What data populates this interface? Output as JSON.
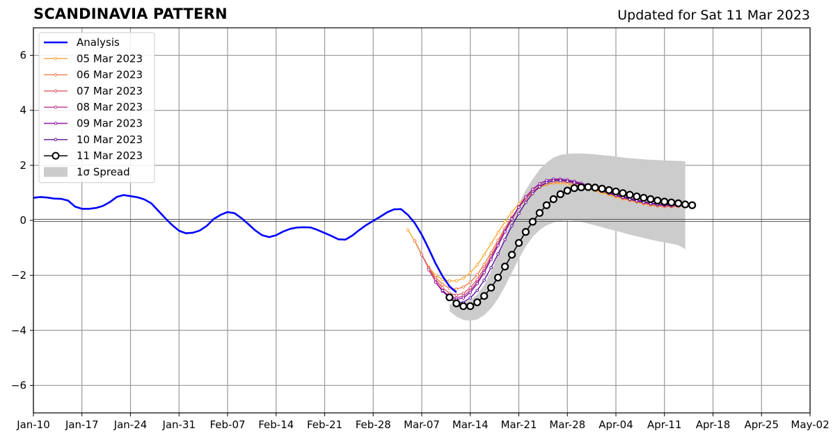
{
  "chart_data": {
    "type": "line",
    "title": "SCANDINAVIA PATTERN",
    "subtitle": "Updated for Sat 11 Mar 2023",
    "xlabel": "",
    "ylabel": "",
    "ylim": [
      -7,
      7
    ],
    "xlim": [
      "2023-01-10",
      "2023-05-02"
    ],
    "yticks": [
      -6,
      -4,
      -2,
      0,
      2,
      4,
      6
    ],
    "xticks": [
      "Jan-10",
      "Jan-17",
      "Jan-24",
      "Jan-31",
      "Feb-07",
      "Feb-14",
      "Feb-21",
      "Feb-28",
      "Mar-07",
      "Mar-14",
      "Mar-21",
      "Mar-28",
      "Apr-04",
      "Apr-11",
      "Apr-18",
      "Apr-25",
      "May-02"
    ],
    "grid": true,
    "legend_position": "upper left",
    "spread_label": "1σ Spread",
    "analysis": {
      "name": "Analysis",
      "color": "#0000ff",
      "start": "2023-01-10",
      "values": [
        0.82,
        0.85,
        0.83,
        0.79,
        0.78,
        0.72,
        0.5,
        0.42,
        0.42,
        0.45,
        0.52,
        0.66,
        0.85,
        0.92,
        0.88,
        0.84,
        0.76,
        0.62,
        0.35,
        0.08,
        -0.17,
        -0.38,
        -0.47,
        -0.45,
        -0.37,
        -0.2,
        0.05,
        0.2,
        0.3,
        0.26,
        0.08,
        -0.14,
        -0.37,
        -0.54,
        -0.61,
        -0.54,
        -0.41,
        -0.31,
        -0.26,
        -0.25,
        -0.26,
        -0.35,
        -0.46,
        -0.57,
        -0.69,
        -0.7,
        -0.55,
        -0.35,
        -0.17,
        -0.02,
        0.13,
        0.29,
        0.4,
        0.41,
        0.2,
        -0.1,
        -0.52,
        -1.03,
        -1.57,
        -2.03,
        -2.4,
        -2.62
      ]
    },
    "spread": {
      "start": "2023-03-11",
      "upper": [
        -3.05,
        -3.05,
        -3.0,
        -2.9,
        -2.7,
        -2.35,
        -1.85,
        -1.25,
        -0.6,
        0.05,
        0.6,
        1.1,
        1.5,
        1.85,
        2.1,
        2.28,
        2.38,
        2.42,
        2.43,
        2.43,
        2.42,
        2.4,
        2.37,
        2.35,
        2.32,
        2.28,
        2.26,
        2.24,
        2.22,
        2.2,
        2.19,
        2.18,
        2.17,
        2.16,
        2.15
      ],
      "lower": [
        -3.3,
        -3.5,
        -3.62,
        -3.65,
        -3.6,
        -3.45,
        -3.2,
        -2.85,
        -2.4,
        -1.9,
        -1.4,
        -0.95,
        -0.6,
        -0.35,
        -0.18,
        -0.08,
        -0.03,
        0.0,
        -0.02,
        -0.06,
        -0.12,
        -0.18,
        -0.25,
        -0.32,
        -0.38,
        -0.45,
        -0.52,
        -0.58,
        -0.64,
        -0.7,
        -0.75,
        -0.8,
        -0.85,
        -0.9,
        -1.05
      ]
    },
    "series": [
      {
        "name": "05 Mar 2023",
        "color": "#f7a833",
        "start": "2023-03-05",
        "values": [
          -0.35,
          -0.75,
          -1.25,
          -1.7,
          -2.0,
          -2.15,
          -2.2,
          -2.2,
          -2.1,
          -1.9,
          -1.62,
          -1.25,
          -0.85,
          -0.45,
          -0.05,
          0.3,
          0.6,
          0.85,
          1.05,
          1.2,
          1.3,
          1.35,
          1.35,
          1.32,
          1.28,
          1.22,
          1.15,
          1.08,
          1.0,
          0.93,
          0.85,
          0.78,
          0.72,
          0.66,
          0.6,
          0.55,
          0.52,
          0.5,
          0.5,
          0.52,
          0.55
        ]
      },
      {
        "name": "06 Mar 2023",
        "color": "#ef7d45",
        "start": "2023-03-06",
        "values": [
          -0.75,
          -1.25,
          -1.72,
          -2.08,
          -2.32,
          -2.47,
          -2.5,
          -2.42,
          -2.25,
          -1.98,
          -1.6,
          -1.18,
          -0.72,
          -0.28,
          0.12,
          0.48,
          0.78,
          1.02,
          1.2,
          1.32,
          1.38,
          1.4,
          1.38,
          1.34,
          1.28,
          1.2,
          1.12,
          1.04,
          0.96,
          0.88,
          0.8,
          0.74,
          0.68,
          0.62,
          0.57,
          0.53,
          0.51,
          0.5,
          0.51,
          0.54
        ]
      },
      {
        "name": "07 Mar 2023",
        "color": "#d9596b",
        "start": "2023-03-07",
        "values": [
          -1.25,
          -1.75,
          -2.15,
          -2.45,
          -2.65,
          -2.72,
          -2.65,
          -2.45,
          -2.15,
          -1.75,
          -1.3,
          -0.82,
          -0.35,
          0.08,
          0.48,
          0.8,
          1.05,
          1.25,
          1.38,
          1.44,
          1.45,
          1.42,
          1.37,
          1.3,
          1.22,
          1.14,
          1.06,
          0.98,
          0.9,
          0.82,
          0.75,
          0.69,
          0.63,
          0.58,
          0.54,
          0.52,
          0.51,
          0.52,
          0.54
        ]
      },
      {
        "name": "08 Mar 2023",
        "color": "#bb3a8b",
        "start": "2023-03-08",
        "values": [
          -1.8,
          -2.22,
          -2.55,
          -2.75,
          -2.82,
          -2.75,
          -2.55,
          -2.25,
          -1.85,
          -1.38,
          -0.88,
          -0.38,
          0.08,
          0.5,
          0.85,
          1.12,
          1.32,
          1.44,
          1.48,
          1.48,
          1.45,
          1.4,
          1.33,
          1.25,
          1.17,
          1.09,
          1.01,
          0.93,
          0.85,
          0.78,
          0.72,
          0.66,
          0.61,
          0.57,
          0.54,
          0.53,
          0.53,
          0.55
        ]
      },
      {
        "name": "09 Mar 2023",
        "color": "#8e17a1",
        "start": "2023-03-09",
        "values": [
          -2.25,
          -2.58,
          -2.8,
          -2.88,
          -2.82,
          -2.62,
          -2.3,
          -1.9,
          -1.42,
          -0.92,
          -0.42,
          0.05,
          0.48,
          0.85,
          1.13,
          1.33,
          1.45,
          1.5,
          1.5,
          1.47,
          1.42,
          1.35,
          1.27,
          1.19,
          1.11,
          1.03,
          0.95,
          0.87,
          0.8,
          0.74,
          0.68,
          0.63,
          0.59,
          0.56,
          0.55,
          0.55,
          0.57
        ]
      },
      {
        "name": "10 Mar 2023",
        "color": "#5a0f9a",
        "start": "2023-03-10",
        "values": [
          -2.55,
          -2.85,
          -2.98,
          -2.98,
          -2.82,
          -2.55,
          -2.18,
          -1.72,
          -1.22,
          -0.7,
          -0.2,
          0.25,
          0.65,
          0.98,
          1.22,
          1.37,
          1.44,
          1.45,
          1.42,
          1.37,
          1.3,
          1.23,
          1.15,
          1.07,
          0.99,
          0.91,
          0.84,
          0.77,
          0.71,
          0.66,
          0.62,
          0.59,
          0.57,
          0.57,
          0.58,
          0.6
        ]
      },
      {
        "name": "11 Mar 2023",
        "color": "#000000",
        "marker": "open-circle",
        "start": "2023-03-11",
        "values": [
          -2.8,
          -3.02,
          -3.12,
          -3.12,
          -2.98,
          -2.75,
          -2.45,
          -2.08,
          -1.68,
          -1.25,
          -0.82,
          -0.42,
          -0.05,
          0.27,
          0.55,
          0.77,
          0.95,
          1.08,
          1.17,
          1.2,
          1.21,
          1.19,
          1.15,
          1.1,
          1.05,
          0.99,
          0.93,
          0.87,
          0.82,
          0.77,
          0.72,
          0.68,
          0.65,
          0.62,
          0.58,
          0.55
        ]
      }
    ]
  }
}
